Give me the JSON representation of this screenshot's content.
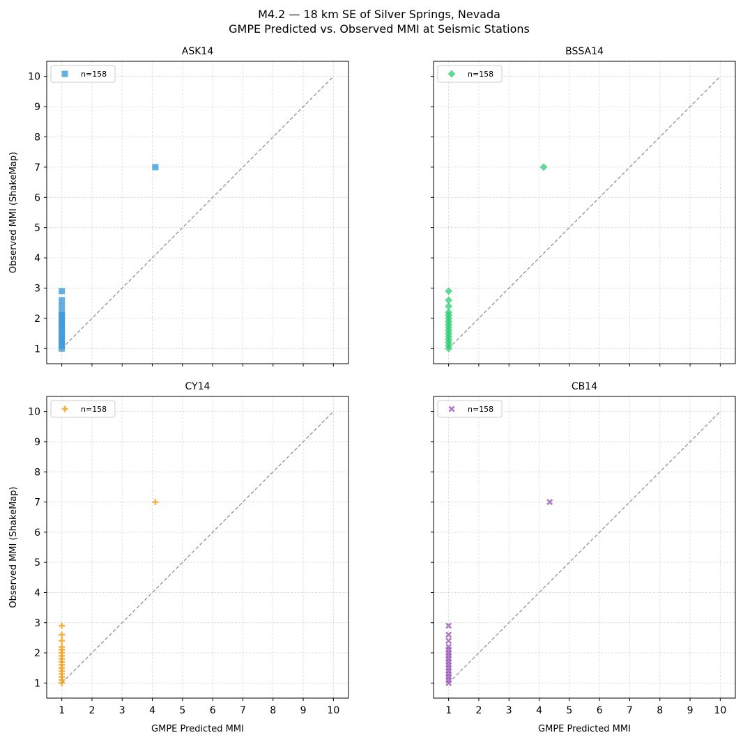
{
  "figure": {
    "title_line1": "M4.2 — 18 km SE of Silver Springs, Nevada",
    "title_line2": "GMPE Predicted vs. Observed MMI at Seismic Stations"
  },
  "chart_data": [
    {
      "type": "scatter",
      "title": "ASK14",
      "xlabel": "",
      "ylabel": "Observed MMI (ShakeMap)",
      "xlim": [
        0.5,
        10.5
      ],
      "ylim": [
        0.5,
        10.5
      ],
      "x_ticks": [
        1,
        2,
        3,
        4,
        5,
        6,
        7,
        8,
        9,
        10
      ],
      "y_ticks": [
        1,
        2,
        3,
        4,
        5,
        6,
        7,
        8,
        9,
        10
      ],
      "grid": true,
      "reference_line": {
        "from": [
          1,
          1
        ],
        "to": [
          10,
          10
        ],
        "style": "dashed"
      },
      "legend": {
        "position": "upper-left",
        "label": "n=158"
      },
      "marker": "square",
      "color": "#3a9ad9",
      "series": [
        {
          "values": [
            {
              "x": 4.1,
              "y": 7.0
            },
            {
              "x": 1.0,
              "y": 2.9
            },
            {
              "x": 1.0,
              "y": 2.6
            },
            {
              "x": 1.0,
              "y": 2.4
            },
            {
              "x": 1.0,
              "y": 2.2
            },
            {
              "x": 1.0,
              "y": 2.1
            },
            {
              "x": 1.0,
              "y": 2.0
            },
            {
              "x": 1.0,
              "y": 1.9
            },
            {
              "x": 1.0,
              "y": 1.8
            },
            {
              "x": 1.0,
              "y": 1.7
            },
            {
              "x": 1.0,
              "y": 1.6
            },
            {
              "x": 1.0,
              "y": 1.5
            },
            {
              "x": 1.0,
              "y": 1.4
            },
            {
              "x": 1.0,
              "y": 1.3
            },
            {
              "x": 1.0,
              "y": 1.2
            },
            {
              "x": 1.0,
              "y": 1.1
            },
            {
              "x": 1.0,
              "y": 1.0
            }
          ]
        }
      ]
    },
    {
      "type": "scatter",
      "title": "BSSA14",
      "xlabel": "",
      "ylabel": "",
      "xlim": [
        0.5,
        10.5
      ],
      "ylim": [
        0.5,
        10.5
      ],
      "x_ticks": [
        1,
        2,
        3,
        4,
        5,
        6,
        7,
        8,
        9,
        10
      ],
      "y_ticks": [
        1,
        2,
        3,
        4,
        5,
        6,
        7,
        8,
        9,
        10
      ],
      "grid": true,
      "reference_line": {
        "from": [
          1,
          1
        ],
        "to": [
          10,
          10
        ],
        "style": "dashed"
      },
      "legend": {
        "position": "upper-left",
        "label": "n=158"
      },
      "marker": "diamond",
      "color": "#2ecc71",
      "series": [
        {
          "values": [
            {
              "x": 4.15,
              "y": 7.0
            },
            {
              "x": 1.0,
              "y": 2.9
            },
            {
              "x": 1.0,
              "y": 2.6
            },
            {
              "x": 1.0,
              "y": 2.4
            },
            {
              "x": 1.0,
              "y": 2.2
            },
            {
              "x": 1.0,
              "y": 2.1
            },
            {
              "x": 1.0,
              "y": 2.0
            },
            {
              "x": 1.0,
              "y": 1.9
            },
            {
              "x": 1.0,
              "y": 1.8
            },
            {
              "x": 1.0,
              "y": 1.7
            },
            {
              "x": 1.0,
              "y": 1.6
            },
            {
              "x": 1.0,
              "y": 1.5
            },
            {
              "x": 1.0,
              "y": 1.4
            },
            {
              "x": 1.0,
              "y": 1.3
            },
            {
              "x": 1.0,
              "y": 1.2
            },
            {
              "x": 1.0,
              "y": 1.1
            },
            {
              "x": 1.0,
              "y": 1.0
            }
          ]
        }
      ]
    },
    {
      "type": "scatter",
      "title": "CY14",
      "xlabel": "GMPE Predicted MMI",
      "ylabel": "Observed MMI (ShakeMap)",
      "xlim": [
        0.5,
        10.5
      ],
      "ylim": [
        0.5,
        10.5
      ],
      "x_ticks": [
        1,
        2,
        3,
        4,
        5,
        6,
        7,
        8,
        9,
        10
      ],
      "y_ticks": [
        1,
        2,
        3,
        4,
        5,
        6,
        7,
        8,
        9,
        10
      ],
      "grid": true,
      "reference_line": {
        "from": [
          1,
          1
        ],
        "to": [
          10,
          10
        ],
        "style": "dashed"
      },
      "legend": {
        "position": "upper-left",
        "label": "n=158"
      },
      "marker": "plus",
      "color": "#f39c12",
      "series": [
        {
          "values": [
            {
              "x": 4.1,
              "y": 7.0
            },
            {
              "x": 1.0,
              "y": 2.9
            },
            {
              "x": 1.0,
              "y": 2.6
            },
            {
              "x": 1.0,
              "y": 2.4
            },
            {
              "x": 1.0,
              "y": 2.2
            },
            {
              "x": 1.0,
              "y": 2.1
            },
            {
              "x": 1.0,
              "y": 2.0
            },
            {
              "x": 1.0,
              "y": 1.9
            },
            {
              "x": 1.0,
              "y": 1.8
            },
            {
              "x": 1.0,
              "y": 1.7
            },
            {
              "x": 1.0,
              "y": 1.6
            },
            {
              "x": 1.0,
              "y": 1.5
            },
            {
              "x": 1.0,
              "y": 1.4
            },
            {
              "x": 1.0,
              "y": 1.3
            },
            {
              "x": 1.0,
              "y": 1.2
            },
            {
              "x": 1.0,
              "y": 1.1
            },
            {
              "x": 1.0,
              "y": 1.0
            }
          ]
        }
      ]
    },
    {
      "type": "scatter",
      "title": "CB14",
      "xlabel": "GMPE Predicted MMI",
      "ylabel": "",
      "xlim": [
        0.5,
        10.5
      ],
      "ylim": [
        0.5,
        10.5
      ],
      "x_ticks": [
        1,
        2,
        3,
        4,
        5,
        6,
        7,
        8,
        9,
        10
      ],
      "y_ticks": [
        1,
        2,
        3,
        4,
        5,
        6,
        7,
        8,
        9,
        10
      ],
      "grid": true,
      "reference_line": {
        "from": [
          1,
          1
        ],
        "to": [
          10,
          10
        ],
        "style": "dashed"
      },
      "legend": {
        "position": "upper-left",
        "label": "n=158"
      },
      "marker": "x",
      "color": "#9b59b6",
      "series": [
        {
          "values": [
            {
              "x": 4.35,
              "y": 7.0
            },
            {
              "x": 1.0,
              "y": 2.9
            },
            {
              "x": 1.0,
              "y": 2.6
            },
            {
              "x": 1.0,
              "y": 2.4
            },
            {
              "x": 1.0,
              "y": 2.2
            },
            {
              "x": 1.0,
              "y": 2.1
            },
            {
              "x": 1.0,
              "y": 2.0
            },
            {
              "x": 1.0,
              "y": 1.9
            },
            {
              "x": 1.0,
              "y": 1.8
            },
            {
              "x": 1.0,
              "y": 1.7
            },
            {
              "x": 1.0,
              "y": 1.6
            },
            {
              "x": 1.0,
              "y": 1.5
            },
            {
              "x": 1.0,
              "y": 1.4
            },
            {
              "x": 1.0,
              "y": 1.3
            },
            {
              "x": 1.0,
              "y": 1.2
            },
            {
              "x": 1.0,
              "y": 1.1
            },
            {
              "x": 1.0,
              "y": 1.0
            }
          ]
        }
      ]
    }
  ]
}
